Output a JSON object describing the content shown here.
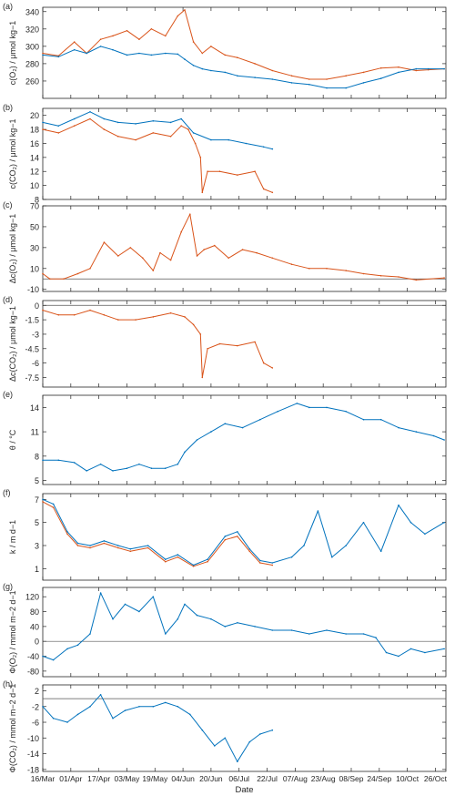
{
  "figure": {
    "x_tick_labels": [
      "16/Mar",
      "01/Apr",
      "17/Apr",
      "03/May",
      "19/May",
      "04/Jun",
      "20/Jun",
      "06/Jul",
      "22/Jul",
      "07/Aug",
      "23/Aug",
      "08/Sep",
      "24/Sep",
      "10/Oct",
      "26/Oct"
    ],
    "x_axis_label": "Date",
    "colors": {
      "series_blue": "#0072bd",
      "series_red": "#d95319",
      "axis": "#262626",
      "zero_line": "#555555"
    }
  },
  "chart_data": [
    {
      "type": "line",
      "panel_label": "(a)",
      "ylabel": "c(O2) / μmol kg−1",
      "ylim": [
        240,
        345
      ],
      "yticks": [
        260,
        280,
        300,
        320,
        340
      ],
      "show_x_ticklabels": false,
      "series": [
        {
          "color": "#d95319",
          "x": [
            "2017-03-16",
            "2017-03-25",
            "2017-04-03",
            "2017-04-10",
            "2017-04-18",
            "2017-04-25",
            "2017-05-03",
            "2017-05-10",
            "2017-05-17",
            "2017-05-25",
            "2017-06-01",
            "2017-06-05",
            "2017-06-10",
            "2017-06-15",
            "2017-06-20",
            "2017-06-28",
            "2017-07-05",
            "2017-07-15",
            "2017-07-25",
            "2017-08-05",
            "2017-08-15",
            "2017-08-25",
            "2017-09-05",
            "2017-09-15",
            "2017-09-25",
            "2017-10-05",
            "2017-10-15",
            "2017-10-22",
            "2017-10-31"
          ],
          "y": [
            292,
            289,
            305,
            292,
            308,
            312,
            318,
            308,
            320,
            312,
            335,
            342,
            305,
            292,
            300,
            290,
            287,
            280,
            272,
            266,
            262,
            262,
            266,
            270,
            275,
            276,
            272,
            273,
            274
          ]
        },
        {
          "color": "#0072bd",
          "x": [
            "2017-03-16",
            "2017-03-25",
            "2017-04-03",
            "2017-04-10",
            "2017-04-18",
            "2017-04-25",
            "2017-05-03",
            "2017-05-10",
            "2017-05-17",
            "2017-05-25",
            "2017-06-01",
            "2017-06-05",
            "2017-06-10",
            "2017-06-15",
            "2017-06-20",
            "2017-06-28",
            "2017-07-05",
            "2017-07-15",
            "2017-07-25",
            "2017-08-05",
            "2017-08-15",
            "2017-08-25",
            "2017-09-05",
            "2017-09-15",
            "2017-09-25",
            "2017-10-05",
            "2017-10-15",
            "2017-10-22",
            "2017-10-31"
          ],
          "y": [
            290,
            288,
            296,
            292,
            300,
            296,
            290,
            292,
            290,
            292,
            291,
            285,
            278,
            274,
            272,
            270,
            266,
            264,
            262,
            258,
            256,
            252,
            252,
            258,
            263,
            270,
            274,
            274,
            274
          ]
        }
      ]
    },
    {
      "type": "line",
      "panel_label": "(b)",
      "ylabel": "c(CO2) / μmol kg−1",
      "ylim": [
        8,
        21
      ],
      "yticks": [
        8,
        10,
        12,
        14,
        16,
        18,
        20
      ],
      "show_x_ticklabels": false,
      "series": [
        {
          "color": "#d95319",
          "x": [
            "2017-03-16",
            "2017-03-25",
            "2017-04-03",
            "2017-04-12",
            "2017-04-20",
            "2017-04-28",
            "2017-05-08",
            "2017-05-18",
            "2017-05-28",
            "2017-06-03",
            "2017-06-07",
            "2017-06-11",
            "2017-06-14",
            "2017-06-15",
            "2017-06-18",
            "2017-06-25",
            "2017-07-05",
            "2017-07-15",
            "2017-07-20",
            "2017-07-25"
          ],
          "y": [
            18,
            17.5,
            18.5,
            19.5,
            18,
            17,
            16.5,
            17.5,
            17,
            18.5,
            18,
            16,
            14,
            9,
            12,
            12,
            11.5,
            12,
            9.5,
            9
          ]
        },
        {
          "color": "#0072bd",
          "x": [
            "2017-03-16",
            "2017-03-25",
            "2017-04-03",
            "2017-04-12",
            "2017-04-20",
            "2017-04-28",
            "2017-05-08",
            "2017-05-18",
            "2017-05-28",
            "2017-06-03",
            "2017-06-10",
            "2017-06-20",
            "2017-06-30",
            "2017-07-10",
            "2017-07-20",
            "2017-07-25"
          ],
          "y": [
            19,
            18.5,
            19.5,
            20.5,
            19.5,
            19,
            18.8,
            19.2,
            19,
            19.5,
            17.5,
            16.5,
            16.5,
            16,
            15.5,
            15.2
          ]
        }
      ]
    },
    {
      "type": "line",
      "panel_label": "(c)",
      "ylabel": "Δc(O2) / μmol kg−1",
      "ylim": [
        -12,
        70
      ],
      "yticks": [
        -10,
        10,
        30,
        50,
        70
      ],
      "zero_line": true,
      "show_x_ticklabels": false,
      "series": [
        {
          "color": "#d95319",
          "x": [
            "2017-03-16",
            "2017-03-20",
            "2017-03-28",
            "2017-04-05",
            "2017-04-12",
            "2017-04-20",
            "2017-04-28",
            "2017-05-05",
            "2017-05-12",
            "2017-05-18",
            "2017-05-22",
            "2017-05-28",
            "2017-06-03",
            "2017-06-08",
            "2017-06-12",
            "2017-06-16",
            "2017-06-22",
            "2017-06-30",
            "2017-07-08",
            "2017-07-16",
            "2017-07-25",
            "2017-08-05",
            "2017-08-15",
            "2017-08-25",
            "2017-09-05",
            "2017-09-15",
            "2017-09-25",
            "2017-10-05",
            "2017-10-15",
            "2017-10-31"
          ],
          "y": [
            5,
            0,
            0,
            5,
            10,
            35,
            22,
            30,
            20,
            8,
            25,
            18,
            45,
            62,
            22,
            28,
            32,
            20,
            28,
            25,
            20,
            14,
            10,
            10,
            8,
            5,
            3,
            2,
            -1,
            1
          ]
        }
      ]
    },
    {
      "type": "line",
      "panel_label": "(d)",
      "ylabel": "Δc(CO2) / μmol kg−1",
      "ylim": [
        -8.5,
        0.5
      ],
      "yticks": [
        0,
        -1.5,
        -3,
        -4.5,
        -6,
        -7.5
      ],
      "zero_line": true,
      "show_x_ticklabels": false,
      "series": [
        {
          "color": "#d95319",
          "x": [
            "2017-03-16",
            "2017-03-25",
            "2017-04-03",
            "2017-04-12",
            "2017-04-20",
            "2017-04-28",
            "2017-05-08",
            "2017-05-18",
            "2017-05-28",
            "2017-06-05",
            "2017-06-10",
            "2017-06-14",
            "2017-06-15",
            "2017-06-18",
            "2017-06-25",
            "2017-07-05",
            "2017-07-15",
            "2017-07-20",
            "2017-07-25"
          ],
          "y": [
            -0.5,
            -1,
            -1,
            -0.5,
            -1,
            -1.5,
            -1.5,
            -1.2,
            -0.8,
            -1.2,
            -2,
            -3,
            -7.5,
            -4.5,
            -4,
            -4.2,
            -3.8,
            -6,
            -6.5
          ]
        }
      ]
    },
    {
      "type": "line",
      "panel_label": "(e)",
      "ylabel": "θ / °C",
      "ylim": [
        4.5,
        15.5
      ],
      "yticks": [
        5,
        8,
        11,
        14
      ],
      "show_x_ticklabels": false,
      "series": [
        {
          "color": "#0072bd",
          "x": [
            "2017-03-16",
            "2017-03-25",
            "2017-04-03",
            "2017-04-10",
            "2017-04-18",
            "2017-04-25",
            "2017-05-03",
            "2017-05-10",
            "2017-05-17",
            "2017-05-25",
            "2017-06-01",
            "2017-06-05",
            "2017-06-12",
            "2017-06-20",
            "2017-06-28",
            "2017-07-08",
            "2017-07-18",
            "2017-07-28",
            "2017-08-08",
            "2017-08-15",
            "2017-08-25",
            "2017-09-05",
            "2017-09-15",
            "2017-09-25",
            "2017-10-05",
            "2017-10-15",
            "2017-10-25",
            "2017-10-31"
          ],
          "y": [
            7.5,
            7.5,
            7.2,
            6.2,
            7,
            6.2,
            6.5,
            7,
            6.5,
            6.5,
            7,
            8.5,
            10,
            11,
            12,
            11.5,
            12.5,
            13.5,
            14.5,
            14,
            14,
            13.5,
            12.5,
            12.5,
            11.5,
            11,
            10.5,
            10
          ]
        }
      ]
    },
    {
      "type": "line",
      "panel_label": "(f)",
      "ylabel": "k / m d−1",
      "ylim": [
        0,
        7.5
      ],
      "yticks": [
        1,
        3,
        5,
        7
      ],
      "show_x_ticklabels": false,
      "series": [
        {
          "color": "#d95319",
          "x": [
            "2017-03-16",
            "2017-03-22",
            "2017-03-30",
            "2017-04-05",
            "2017-04-12",
            "2017-04-20",
            "2017-04-28",
            "2017-05-05",
            "2017-05-15",
            "2017-05-25",
            "2017-06-01",
            "2017-06-10",
            "2017-06-18",
            "2017-06-28",
            "2017-07-05",
            "2017-07-12",
            "2017-07-18",
            "2017-07-25"
          ],
          "y": [
            6.8,
            6.3,
            4,
            3,
            2.8,
            3.2,
            2.8,
            2.5,
            2.8,
            1.6,
            2,
            1.2,
            1.6,
            3.5,
            3.8,
            2.5,
            1.5,
            1.3
          ]
        },
        {
          "color": "#0072bd",
          "x": [
            "2017-03-16",
            "2017-03-22",
            "2017-03-30",
            "2017-04-05",
            "2017-04-12",
            "2017-04-20",
            "2017-04-28",
            "2017-05-05",
            "2017-05-15",
            "2017-05-25",
            "2017-06-01",
            "2017-06-10",
            "2017-06-18",
            "2017-06-28",
            "2017-07-05",
            "2017-07-12",
            "2017-07-18",
            "2017-07-25",
            "2017-08-05",
            "2017-08-12",
            "2017-08-20",
            "2017-08-28",
            "2017-09-05",
            "2017-09-15",
            "2017-09-25",
            "2017-10-05",
            "2017-10-12",
            "2017-10-20",
            "2017-10-31"
          ],
          "y": [
            7,
            6.6,
            4.2,
            3.2,
            3,
            3.4,
            3,
            2.7,
            3,
            1.8,
            2.2,
            1.3,
            1.8,
            3.8,
            4.2,
            2.7,
            1.7,
            1.5,
            2,
            3,
            6,
            2,
            3,
            5,
            2.5,
            6.5,
            5,
            4,
            5
          ]
        }
      ]
    },
    {
      "type": "line",
      "panel_label": "(g)",
      "ylabel": "Φ(O2) / mmol m−2 d−1",
      "ylim": [
        -95,
        145
      ],
      "yticks": [
        -80,
        -40,
        0,
        40,
        80,
        120
      ],
      "zero_line": true,
      "show_x_ticklabels": false,
      "series": [
        {
          "color": "#0072bd",
          "x": [
            "2017-03-16",
            "2017-03-22",
            "2017-03-30",
            "2017-04-05",
            "2017-04-12",
            "2017-04-18",
            "2017-04-25",
            "2017-05-02",
            "2017-05-10",
            "2017-05-18",
            "2017-05-25",
            "2017-06-01",
            "2017-06-05",
            "2017-06-12",
            "2017-06-20",
            "2017-06-28",
            "2017-07-05",
            "2017-07-15",
            "2017-07-25",
            "2017-08-05",
            "2017-08-15",
            "2017-08-25",
            "2017-09-05",
            "2017-09-15",
            "2017-09-22",
            "2017-09-28",
            "2017-10-05",
            "2017-10-12",
            "2017-10-20",
            "2017-10-31"
          ],
          "y": [
            -40,
            -50,
            -20,
            -10,
            20,
            130,
            60,
            100,
            80,
            120,
            20,
            60,
            100,
            70,
            60,
            40,
            50,
            40,
            30,
            30,
            20,
            30,
            20,
            20,
            10,
            -30,
            -40,
            -20,
            -30,
            -20
          ]
        }
      ]
    },
    {
      "type": "line",
      "panel_label": "(h)",
      "ylabel": "Φ(CO2) / mmol m−2 d−1",
      "ylim": [
        -18.5,
        3.5
      ],
      "yticks": [
        2,
        -2,
        -6,
        -10,
        -14,
        -18
      ],
      "zero_line": true,
      "show_x_ticklabels": true,
      "series": [
        {
          "color": "#0072bd",
          "x": [
            "2017-03-16",
            "2017-03-22",
            "2017-03-30",
            "2017-04-05",
            "2017-04-12",
            "2017-04-18",
            "2017-04-25",
            "2017-05-02",
            "2017-05-10",
            "2017-05-18",
            "2017-05-25",
            "2017-06-01",
            "2017-06-08",
            "2017-06-15",
            "2017-06-22",
            "2017-06-28",
            "2017-07-05",
            "2017-07-12",
            "2017-07-18",
            "2017-07-25"
          ],
          "y": [
            -2,
            -5,
            -6,
            -4,
            -2,
            1,
            -5,
            -3,
            -2,
            -2,
            -1,
            -2,
            -4,
            -8,
            -12,
            -10,
            -16,
            -11,
            -9,
            -8
          ]
        }
      ]
    }
  ]
}
